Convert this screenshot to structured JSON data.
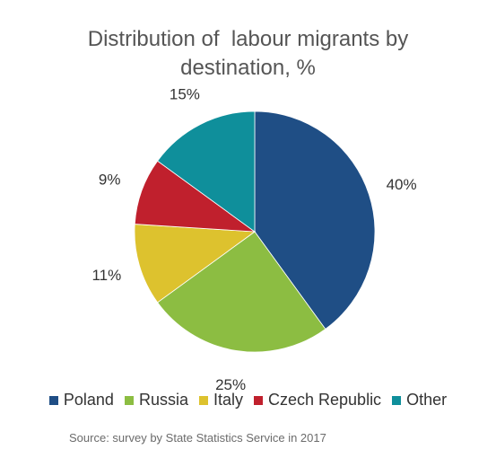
{
  "chart_data": {
    "type": "pie",
    "title_line1": "Distribution of  labour migrants by",
    "title_line2": "destination, %",
    "categories": [
      "Poland",
      "Russia",
      "Italy",
      "Czech Republic",
      "Other"
    ],
    "values": [
      40,
      25,
      11,
      9,
      15
    ],
    "data_labels": [
      "40%",
      "25%",
      "11%",
      "9%",
      "15%"
    ],
    "colors": [
      "#1f4e85",
      "#8cbd42",
      "#ddc22e",
      "#c0202d",
      "#0f8f9b"
    ],
    "legend_position": "bottom",
    "source": "Source: survey by State Statistics Service in 2017"
  }
}
